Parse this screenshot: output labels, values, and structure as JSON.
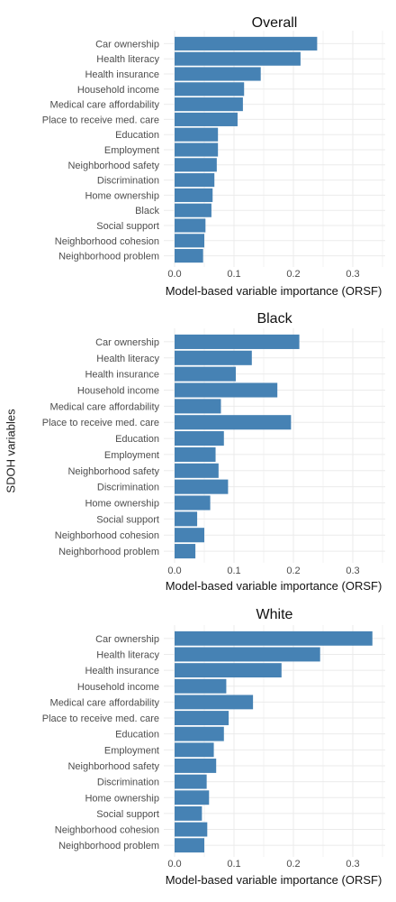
{
  "figure": {
    "ylabel": "SDOH variables"
  },
  "colors": {
    "bar": "#4682B4",
    "grid": "#EBEBEB",
    "text": "#4D4D4D",
    "title": "#111111"
  },
  "chart_data": [
    {
      "type": "bar",
      "orientation": "horizontal",
      "title": "Overall",
      "xlabel": "Model-based variable importance (ORSF)",
      "xlim": [
        0,
        0.35
      ],
      "xticks": [
        "0.0",
        "0.1",
        "0.2",
        "0.3"
      ],
      "xtick_values": [
        0,
        0.1,
        0.2,
        0.3
      ],
      "grid": true,
      "categories": [
        "Car ownership",
        "Health literacy",
        "Health insurance",
        "Household income",
        "Medical care affordability",
        "Place to receive med. care",
        "Education",
        "Employment",
        "Neighborhood safety",
        "Discrimination",
        "Home ownership",
        "Black",
        "Social support",
        "Neighborhood cohesion",
        "Neighborhood problem"
      ],
      "values": [
        0.24,
        0.212,
        0.145,
        0.117,
        0.115,
        0.106,
        0.073,
        0.073,
        0.071,
        0.067,
        0.064,
        0.062,
        0.052,
        0.05,
        0.048
      ]
    },
    {
      "type": "bar",
      "orientation": "horizontal",
      "title": "Black",
      "xlabel": "Model-based variable importance (ORSF)",
      "xlim": [
        0,
        0.35
      ],
      "xticks": [
        "0.0",
        "0.1",
        "0.2",
        "0.3"
      ],
      "xtick_values": [
        0,
        0.1,
        0.2,
        0.3
      ],
      "grid": true,
      "categories": [
        "Car ownership",
        "Health literacy",
        "Health insurance",
        "Household income",
        "Medical care affordability",
        "Place to receive med. care",
        "Education",
        "Employment",
        "Neighborhood safety",
        "Discrimination",
        "Home ownership",
        "Social support",
        "Neighborhood cohesion",
        "Neighborhood problem"
      ],
      "values": [
        0.21,
        0.13,
        0.103,
        0.173,
        0.078,
        0.196,
        0.083,
        0.069,
        0.074,
        0.09,
        0.06,
        0.038,
        0.05,
        0.035
      ]
    },
    {
      "type": "bar",
      "orientation": "horizontal",
      "title": "White",
      "xlabel": "Model-based variable importance (ORSF)",
      "xlim": [
        0,
        0.35
      ],
      "xticks": [
        "0.0",
        "0.1",
        "0.2",
        "0.3"
      ],
      "xtick_values": [
        0,
        0.1,
        0.2,
        0.3
      ],
      "grid": true,
      "categories": [
        "Car ownership",
        "Health literacy",
        "Health insurance",
        "Household income",
        "Medical care affordability",
        "Place to receive med. care",
        "Education",
        "Employment",
        "Neighborhood safety",
        "Discrimination",
        "Home ownership",
        "Social support",
        "Neighborhood cohesion",
        "Neighborhood problem"
      ],
      "values": [
        0.333,
        0.245,
        0.18,
        0.087,
        0.132,
        0.091,
        0.083,
        0.066,
        0.07,
        0.054,
        0.058,
        0.046,
        0.055,
        0.05
      ]
    }
  ]
}
